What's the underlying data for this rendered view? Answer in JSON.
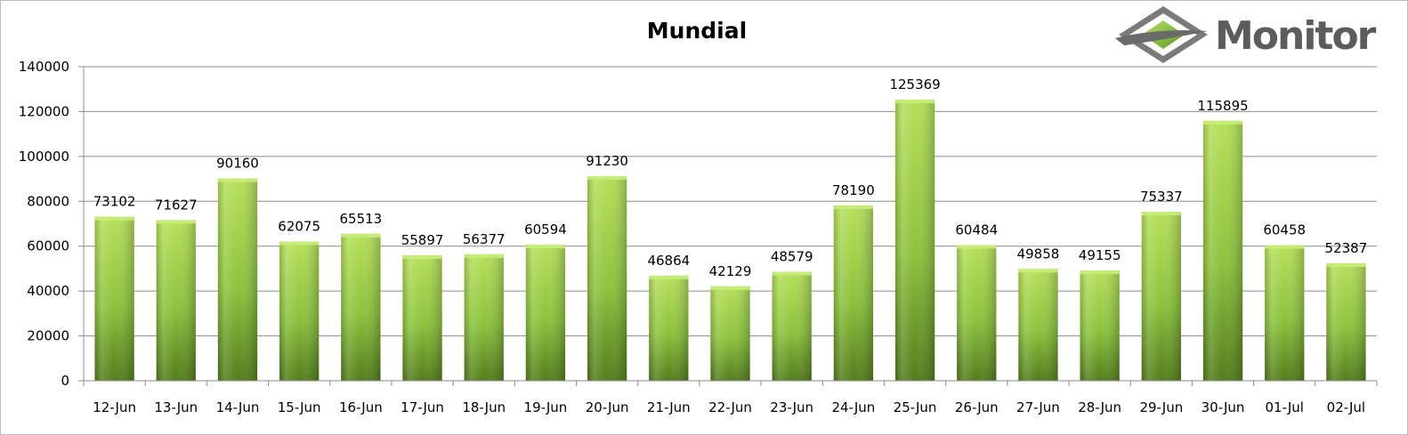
{
  "chart_data": {
    "type": "bar",
    "title": "Mundial",
    "categories": [
      "12-Jun",
      "13-Jun",
      "14-Jun",
      "15-Jun",
      "16-Jun",
      "17-Jun",
      "18-Jun",
      "19-Jun",
      "20-Jun",
      "21-Jun",
      "22-Jun",
      "23-Jun",
      "24-Jun",
      "25-Jun",
      "26-Jun",
      "27-Jun",
      "28-Jun",
      "29-Jun",
      "30-Jun",
      "01-Jul",
      "02-Jul"
    ],
    "values": [
      73102,
      71627,
      90160,
      62075,
      65513,
      55897,
      56377,
      60594,
      91230,
      46864,
      42129,
      48579,
      78190,
      125369,
      60484,
      49858,
      49155,
      75337,
      115895,
      60458,
      52387
    ],
    "ylim": [
      0,
      140000
    ],
    "yticks": [
      0,
      20000,
      40000,
      60000,
      80000,
      100000,
      120000,
      140000
    ],
    "xlabel": "",
    "ylabel": "",
    "grid": true,
    "legend": "none",
    "bar_color": "#8dc63f",
    "bar_color_dark": "#4d7a17"
  },
  "logo": {
    "text": "Monitor",
    "icon": "diamond-logo-icon",
    "colors": {
      "text": "#5c5c5c",
      "diamond": "#8dc63f",
      "frame": "#6a6a6a"
    }
  }
}
